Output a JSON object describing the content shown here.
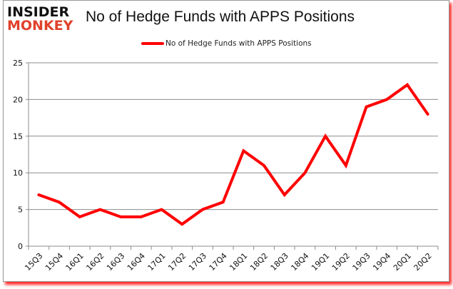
{
  "branding": {
    "line1": "INSIDER",
    "line2": "MONKEY"
  },
  "chart_data": {
    "type": "line",
    "title": "No of Hedge Funds with APPS Positions",
    "xlabel": "",
    "ylabel": "",
    "ylim": [
      0,
      25
    ],
    "yticks": [
      0,
      5,
      10,
      15,
      20,
      25
    ],
    "grid": true,
    "legend_position": "top",
    "categories": [
      "15Q3",
      "15Q4",
      "16Q1",
      "16Q2",
      "16Q3",
      "16Q4",
      "17Q1",
      "17Q2",
      "17Q3",
      "17Q4",
      "18Q1",
      "18Q2",
      "18Q3",
      "18Q4",
      "19Q1",
      "19Q2",
      "19Q3",
      "19Q4",
      "20Q1",
      "20Q2"
    ],
    "series": [
      {
        "name": "No of Hedge Funds with APPS Positions",
        "color": "#ff0000",
        "values": [
          7,
          6,
          4,
          5,
          4,
          4,
          5,
          3,
          5,
          6,
          13,
          11,
          7,
          10,
          15,
          11,
          19,
          20,
          22,
          18
        ]
      }
    ]
  }
}
